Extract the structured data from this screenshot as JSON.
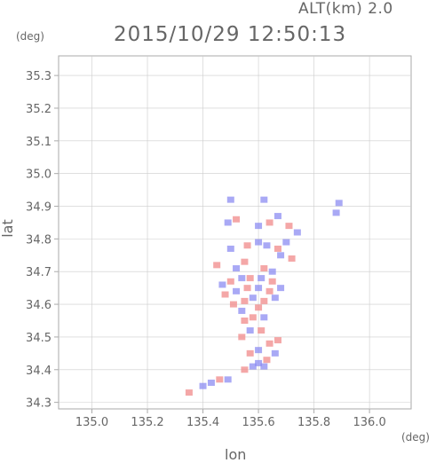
{
  "header": {
    "altitude": "ALT(km) 2.0",
    "timestamp": "2015/10/29 12:50:13"
  },
  "chart_data": {
    "type": "heatmap",
    "xlabel": "lon",
    "ylabel": "lat",
    "xunit": "(deg)",
    "yunit": "(deg)",
    "xlim": [
      134.88,
      136.15
    ],
    "ylim": [
      34.28,
      35.36
    ],
    "xticks": [
      "135.0",
      "135.2",
      "135.4",
      "135.6",
      "135.8",
      "136.0"
    ],
    "yticks": [
      "34.3",
      "34.4",
      "34.5",
      "34.6",
      "34.7",
      "34.8",
      "34.9",
      "35.0",
      "35.1",
      "35.2",
      "35.3"
    ],
    "grid": true,
    "colors": {
      "positive": "#f08a8a",
      "negative": "#8c8cf2",
      "grid": "#cccccc",
      "axis": "#aaaaaa"
    },
    "cells": [
      {
        "lon": 135.35,
        "lat": 34.33,
        "v": 1
      },
      {
        "lon": 135.4,
        "lat": 34.35,
        "v": -1
      },
      {
        "lon": 135.43,
        "lat": 34.36,
        "v": -1
      },
      {
        "lon": 135.46,
        "lat": 34.37,
        "v": 1
      },
      {
        "lon": 135.49,
        "lat": 34.37,
        "v": -1
      },
      {
        "lon": 135.55,
        "lat": 34.4,
        "v": 1
      },
      {
        "lon": 135.58,
        "lat": 34.41,
        "v": -1
      },
      {
        "lon": 135.6,
        "lat": 34.42,
        "v": -1
      },
      {
        "lon": 135.62,
        "lat": 34.41,
        "v": -1
      },
      {
        "lon": 135.63,
        "lat": 34.43,
        "v": 1
      },
      {
        "lon": 135.57,
        "lat": 34.45,
        "v": 1
      },
      {
        "lon": 135.6,
        "lat": 34.46,
        "v": -1
      },
      {
        "lon": 135.66,
        "lat": 34.45,
        "v": -1
      },
      {
        "lon": 135.64,
        "lat": 34.48,
        "v": 1
      },
      {
        "lon": 135.67,
        "lat": 34.49,
        "v": 1
      },
      {
        "lon": 135.54,
        "lat": 34.5,
        "v": 1
      },
      {
        "lon": 135.57,
        "lat": 34.52,
        "v": -1
      },
      {
        "lon": 135.61,
        "lat": 34.52,
        "v": 1
      },
      {
        "lon": 135.55,
        "lat": 34.55,
        "v": 1
      },
      {
        "lon": 135.58,
        "lat": 34.56,
        "v": 1
      },
      {
        "lon": 135.62,
        "lat": 34.56,
        "v": -1
      },
      {
        "lon": 135.54,
        "lat": 34.58,
        "v": -1
      },
      {
        "lon": 135.6,
        "lat": 34.59,
        "v": 1
      },
      {
        "lon": 135.51,
        "lat": 34.6,
        "v": 1
      },
      {
        "lon": 135.55,
        "lat": 34.61,
        "v": 1
      },
      {
        "lon": 135.58,
        "lat": 34.62,
        "v": -1
      },
      {
        "lon": 135.62,
        "lat": 34.61,
        "v": 1
      },
      {
        "lon": 135.66,
        "lat": 34.62,
        "v": -1
      },
      {
        "lon": 135.48,
        "lat": 34.63,
        "v": 1
      },
      {
        "lon": 135.52,
        "lat": 34.64,
        "v": -1
      },
      {
        "lon": 135.56,
        "lat": 34.65,
        "v": 1
      },
      {
        "lon": 135.6,
        "lat": 34.65,
        "v": -1
      },
      {
        "lon": 135.64,
        "lat": 34.64,
        "v": 1
      },
      {
        "lon": 135.68,
        "lat": 34.65,
        "v": -1
      },
      {
        "lon": 135.47,
        "lat": 34.66,
        "v": -1
      },
      {
        "lon": 135.5,
        "lat": 34.67,
        "v": 1
      },
      {
        "lon": 135.54,
        "lat": 34.68,
        "v": -1
      },
      {
        "lon": 135.57,
        "lat": 34.68,
        "v": 1
      },
      {
        "lon": 135.61,
        "lat": 34.68,
        "v": -1
      },
      {
        "lon": 135.65,
        "lat": 34.67,
        "v": 1
      },
      {
        "lon": 135.45,
        "lat": 34.72,
        "v": 1
      },
      {
        "lon": 135.52,
        "lat": 34.71,
        "v": -1
      },
      {
        "lon": 135.55,
        "lat": 34.73,
        "v": 1
      },
      {
        "lon": 135.62,
        "lat": 34.71,
        "v": 1
      },
      {
        "lon": 135.65,
        "lat": 34.7,
        "v": -1
      },
      {
        "lon": 135.5,
        "lat": 34.77,
        "v": -1
      },
      {
        "lon": 135.56,
        "lat": 34.78,
        "v": 1
      },
      {
        "lon": 135.6,
        "lat": 34.79,
        "v": -1
      },
      {
        "lon": 135.63,
        "lat": 34.78,
        "v": -1
      },
      {
        "lon": 135.67,
        "lat": 34.77,
        "v": 1
      },
      {
        "lon": 135.7,
        "lat": 34.79,
        "v": -1
      },
      {
        "lon": 135.68,
        "lat": 34.75,
        "v": -1
      },
      {
        "lon": 135.49,
        "lat": 34.85,
        "v": -1
      },
      {
        "lon": 135.52,
        "lat": 34.86,
        "v": 1
      },
      {
        "lon": 135.6,
        "lat": 34.84,
        "v": -1
      },
      {
        "lon": 135.64,
        "lat": 34.85,
        "v": 1
      },
      {
        "lon": 135.67,
        "lat": 34.87,
        "v": -1
      },
      {
        "lon": 135.71,
        "lat": 34.84,
        "v": 1
      },
      {
        "lon": 135.74,
        "lat": 34.82,
        "v": -1
      },
      {
        "lon": 135.5,
        "lat": 34.92,
        "v": -1
      },
      {
        "lon": 135.62,
        "lat": 34.92,
        "v": -1
      },
      {
        "lon": 135.88,
        "lat": 34.88,
        "v": -1
      },
      {
        "lon": 135.89,
        "lat": 34.91,
        "v": -1
      },
      {
        "lon": 135.72,
        "lat": 34.74,
        "v": 1
      }
    ]
  }
}
